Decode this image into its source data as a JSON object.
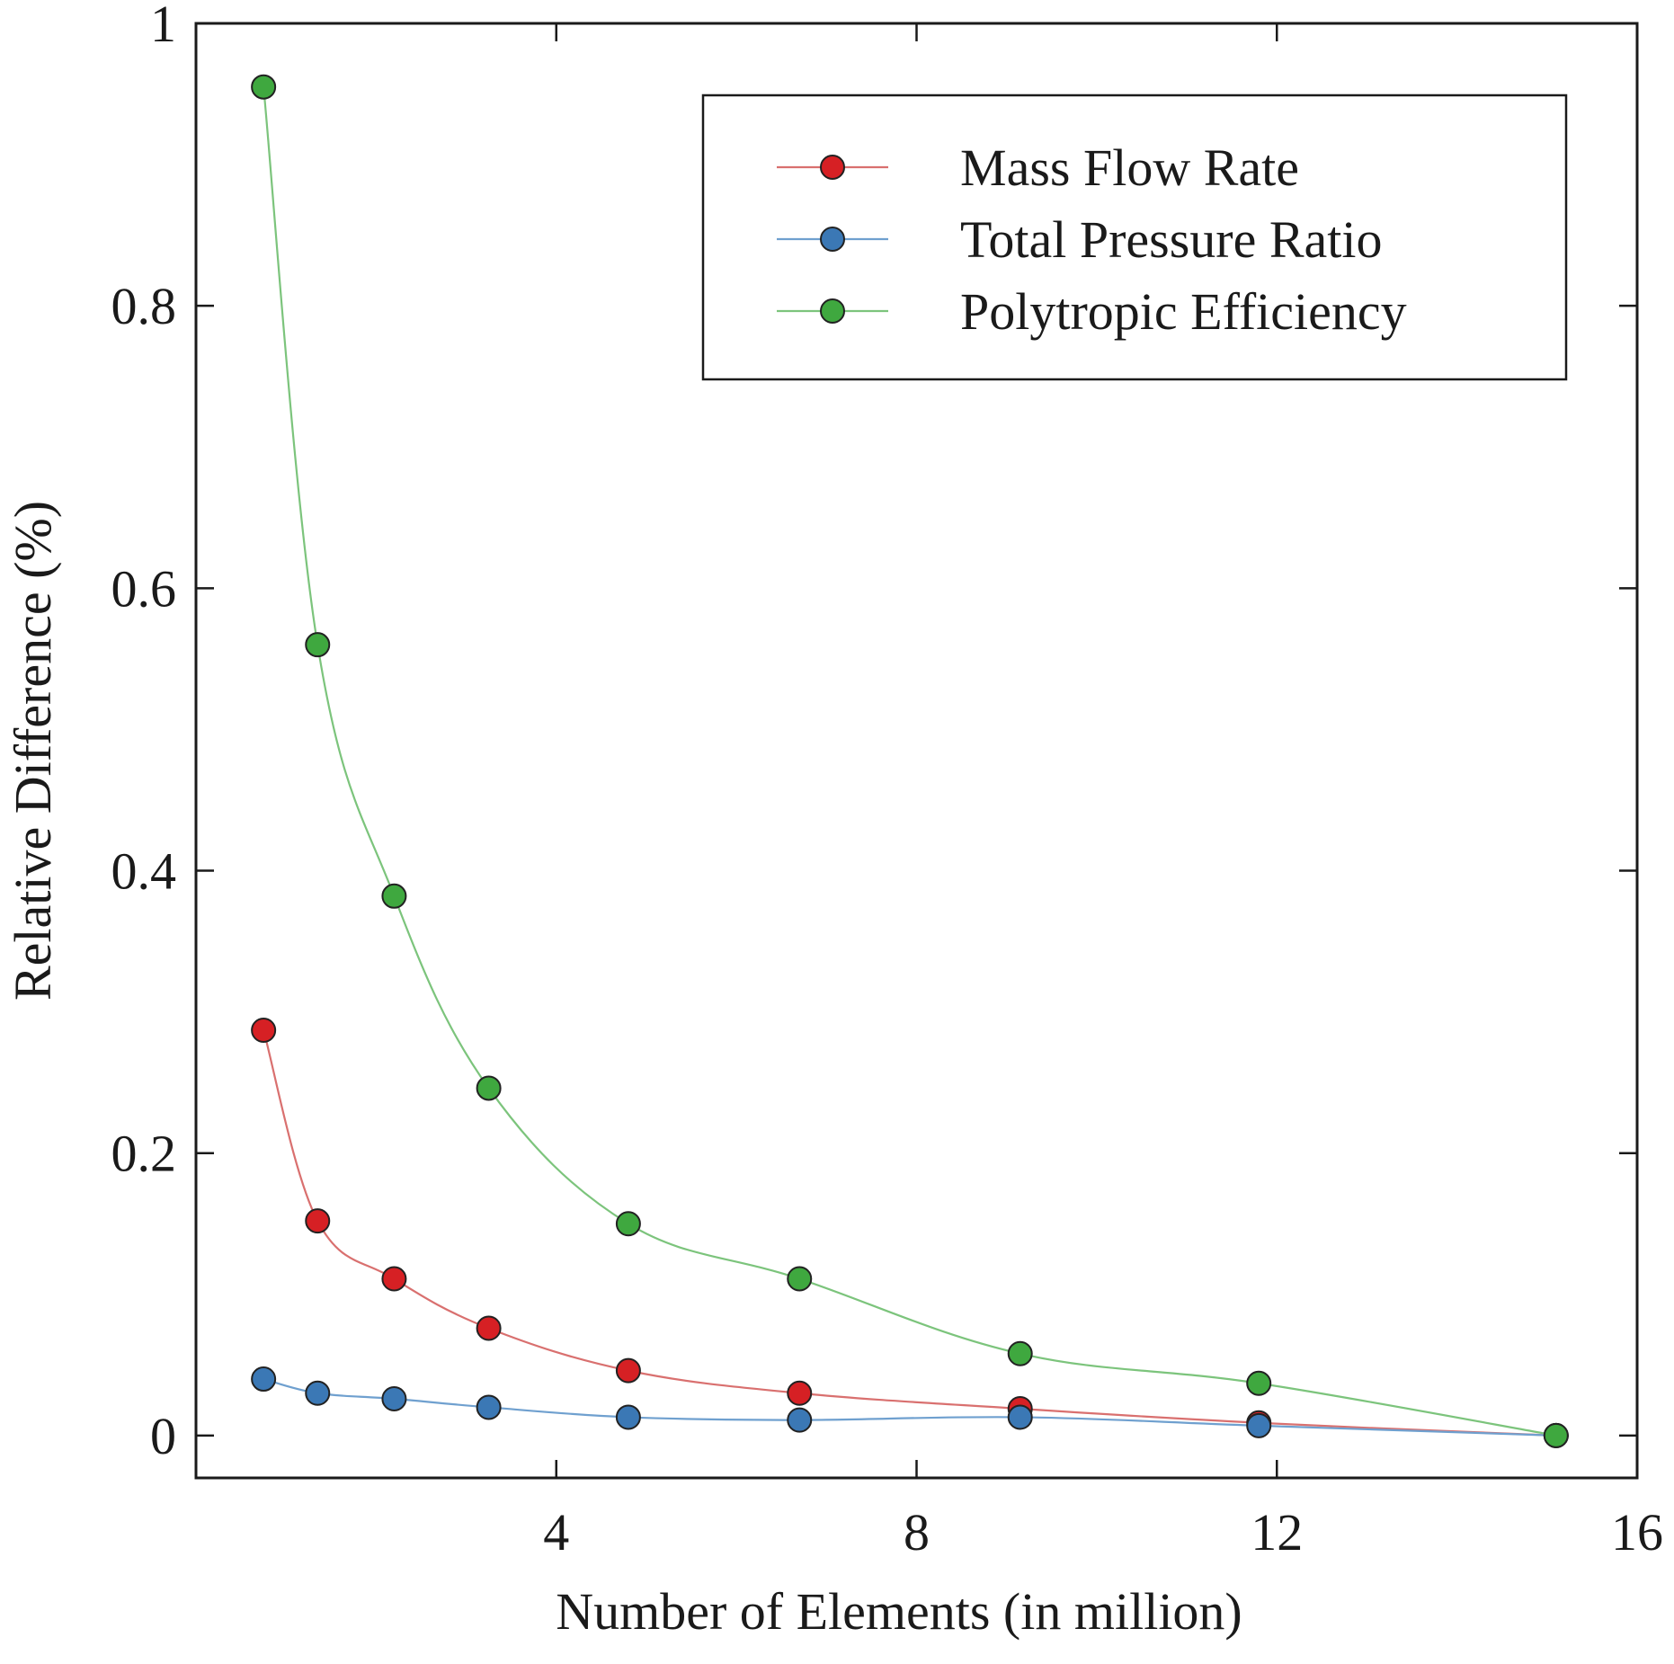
{
  "chart_data": {
    "type": "line",
    "title": "",
    "xlabel": "Number of Elements (in million)",
    "ylabel": "Relative Difference (%)",
    "xlim": [
      0,
      16
    ],
    "ylim": [
      -0.03,
      1.0
    ],
    "xticks": [
      4,
      8,
      12,
      16
    ],
    "xtick_labels": [
      "4",
      "8",
      "12",
      "16"
    ],
    "yticks": [
      0,
      0.2,
      0.4,
      0.6,
      0.8,
      1
    ],
    "ytick_labels": [
      "0",
      "0.2",
      "0.4",
      "0.6",
      "0.8",
      "1"
    ],
    "grid": false,
    "legend_position": "top-right",
    "x": [
      0.75,
      1.35,
      2.2,
      3.25,
      4.8,
      6.7,
      9.15,
      11.8,
      15.1
    ],
    "series": [
      {
        "name": "Mass Flow Rate",
        "color": "#d62024",
        "line_color": "#d9706f",
        "values": [
          0.287,
          0.152,
          0.111,
          0.076,
          0.046,
          0.03,
          0.019,
          0.009,
          0.0
        ]
      },
      {
        "name": "Total Pressure Ratio",
        "color": "#3b78b5",
        "line_color": "#6fa0cf",
        "values": [
          0.04,
          0.03,
          0.026,
          0.02,
          0.013,
          0.011,
          0.013,
          0.007,
          0.0
        ]
      },
      {
        "name": "Polytropic Efficiency",
        "color": "#3fa83f",
        "line_color": "#7cc47c",
        "values": [
          0.955,
          0.56,
          0.382,
          0.246,
          0.15,
          0.111,
          0.058,
          0.037,
          0.0
        ]
      }
    ]
  }
}
